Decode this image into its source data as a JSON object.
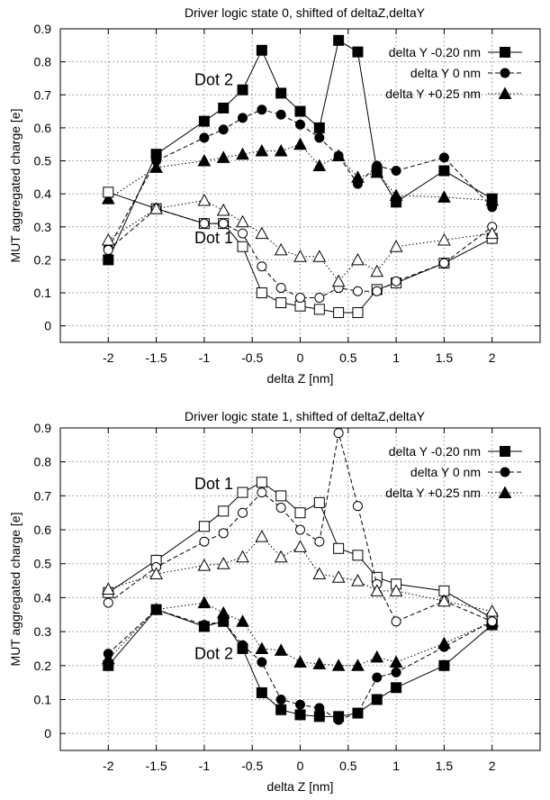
{
  "chart_data": [
    {
      "type": "line",
      "title": "Driver logic state 0, shifted of deltaZ,deltaY",
      "xlabel": "delta Z  [nm]",
      "ylabel": "MUT aggregated charge [e]",
      "xlim": [
        -2.5,
        2.5
      ],
      "ylim": [
        -0.05,
        0.9
      ],
      "xticks": [
        -2,
        -1.5,
        -1,
        -0.5,
        0,
        0.5,
        1,
        1.5,
        2
      ],
      "xtick_labels": [
        "-2",
        "-1.5",
        "-1",
        "-0.5",
        "0",
        "0.5",
        "1",
        "1.5",
        "2"
      ],
      "yticks": [
        0,
        0.1,
        0.2,
        0.3,
        0.4,
        0.5,
        0.6,
        0.7,
        0.8,
        0.9
      ],
      "ytick_labels": [
        "0",
        "0.1",
        "0.2",
        "0.3",
        "0.4",
        "0.5",
        "0.6",
        "0.7",
        "0.8",
        "0.9"
      ],
      "grid": true,
      "legend_position": "top-right",
      "annotations": [
        {
          "text": "Dot 2",
          "x": -0.9,
          "y": 0.73
        },
        {
          "text": "Dot 1",
          "x": -0.9,
          "y": 0.25
        }
      ],
      "x": [
        -2,
        -1.5,
        -1,
        -0.8,
        -0.6,
        -0.4,
        -0.2,
        0,
        0.2,
        0.4,
        0.6,
        0.8,
        1,
        1.5,
        2
      ],
      "series": [
        {
          "name": "delta Y -0.20 nm",
          "group": "Dot 2",
          "marker": "square",
          "filled": true,
          "dash": "solid",
          "values": [
            0.2,
            0.52,
            0.62,
            0.66,
            0.715,
            0.835,
            0.705,
            0.65,
            0.6,
            0.865,
            0.83,
            0.47,
            0.375,
            0.47,
            0.385
          ]
        },
        {
          "name": "delta Y 0 nm",
          "group": "Dot 2",
          "marker": "circle",
          "filled": true,
          "dash": "dash",
          "values": [
            0.235,
            0.5,
            0.57,
            0.595,
            0.63,
            0.655,
            0.64,
            0.61,
            0.57,
            0.515,
            0.43,
            0.485,
            0.47,
            0.51,
            0.36
          ]
        },
        {
          "name": "delta Y +0.25 nm",
          "group": "Dot 2",
          "marker": "triangle",
          "filled": true,
          "dash": "dot",
          "values": [
            0.385,
            0.48,
            0.5,
            0.51,
            0.52,
            0.53,
            0.53,
            0.55,
            0.485,
            0.515,
            0.45,
            0.465,
            0.395,
            0.39,
            0.38
          ]
        },
        {
          "group": "Dot 1",
          "marker": "square",
          "filled": false,
          "dash": "solid",
          "values": [
            0.405,
            0.355,
            0.31,
            0.31,
            0.24,
            0.1,
            0.07,
            0.06,
            0.05,
            0.04,
            0.04,
            0.11,
            0.13,
            0.19,
            0.265
          ]
        },
        {
          "group": "Dot 1",
          "marker": "circle",
          "filled": false,
          "dash": "dash",
          "values": [
            0.23,
            0.355,
            0.31,
            0.31,
            0.28,
            0.18,
            0.115,
            0.085,
            0.085,
            0.115,
            0.105,
            0.105,
            0.135,
            0.19,
            0.3
          ]
        },
        {
          "group": "Dot 1",
          "marker": "triangle",
          "filled": false,
          "dash": "dot",
          "values": [
            0.26,
            0.355,
            0.38,
            0.35,
            0.315,
            0.28,
            0.23,
            0.21,
            0.21,
            0.135,
            0.2,
            0.165,
            0.24,
            0.26,
            0.28
          ]
        }
      ]
    },
    {
      "type": "line",
      "title": "Driver logic state 1, shifted of deltaZ,deltaY",
      "xlabel": "delta Z  [nm]",
      "ylabel": "MUT aggregated charge [e]",
      "xlim": [
        -2.5,
        2.5
      ],
      "ylim": [
        -0.05,
        0.9
      ],
      "xticks": [
        -2,
        -1.5,
        -1,
        -0.5,
        0,
        0.5,
        1,
        1.5,
        2
      ],
      "xtick_labels": [
        "-2",
        "-1.5",
        "-1",
        "-0.5",
        "0",
        "0.5",
        "1",
        "1.5",
        "2"
      ],
      "yticks": [
        0,
        0.1,
        0.2,
        0.3,
        0.4,
        0.5,
        0.6,
        0.7,
        0.8,
        0.9
      ],
      "ytick_labels": [
        "0",
        "0.1",
        "0.2",
        "0.3",
        "0.4",
        "0.5",
        "0.6",
        "0.7",
        "0.8",
        "0.9"
      ],
      "grid": true,
      "legend_position": "top-right",
      "annotations": [
        {
          "text": "Dot 1",
          "x": -0.9,
          "y": 0.72
        },
        {
          "text": "Dot 2",
          "x": -0.9,
          "y": 0.22
        }
      ],
      "x": [
        -2,
        -1.5,
        -1,
        -0.8,
        -0.6,
        -0.4,
        -0.2,
        0,
        0.2,
        0.4,
        0.6,
        0.8,
        1,
        1.5,
        2
      ],
      "series": [
        {
          "name": "delta Y -0.20 nm",
          "group": "Dot 2",
          "marker": "square",
          "filled": true,
          "dash": "solid",
          "values": [
            0.2,
            0.365,
            0.315,
            0.33,
            0.25,
            0.12,
            0.07,
            0.055,
            0.05,
            0.05,
            0.06,
            0.1,
            0.135,
            0.2,
            0.32
          ]
        },
        {
          "name": "delta Y 0 nm",
          "group": "Dot 2",
          "marker": "circle",
          "filled": true,
          "dash": "dash",
          "values": [
            0.235,
            0.365,
            0.32,
            0.33,
            0.26,
            0.21,
            0.1,
            0.085,
            0.075,
            0.04,
            0.06,
            0.165,
            0.18,
            0.255,
            0.33
          ]
        },
        {
          "name": "delta Y +0.25 nm",
          "group": "Dot 2",
          "marker": "triangle",
          "filled": true,
          "dash": "dot",
          "values": [
            0.22,
            0.365,
            0.385,
            0.355,
            0.33,
            0.25,
            0.245,
            0.21,
            0.205,
            0.2,
            0.2,
            0.225,
            0.21,
            0.265,
            0.33
          ]
        },
        {
          "group": "Dot 1",
          "marker": "square",
          "filled": false,
          "dash": "solid",
          "values": [
            0.415,
            0.51,
            0.61,
            0.655,
            0.71,
            0.74,
            0.7,
            0.65,
            0.68,
            0.545,
            0.525,
            0.46,
            0.44,
            0.42,
            0.34
          ]
        },
        {
          "group": "Dot 1",
          "marker": "circle",
          "filled": false,
          "dash": "dash",
          "values": [
            0.385,
            0.49,
            0.565,
            0.59,
            0.65,
            0.71,
            0.665,
            0.6,
            0.565,
            0.885,
            0.67,
            0.44,
            0.33,
            0.39,
            0.33
          ]
        },
        {
          "group": "Dot 1",
          "marker": "triangle",
          "filled": false,
          "dash": "dot",
          "values": [
            0.425,
            0.47,
            0.495,
            0.5,
            0.52,
            0.58,
            0.52,
            0.55,
            0.47,
            0.46,
            0.45,
            0.42,
            0.42,
            0.39,
            0.36
          ]
        }
      ]
    }
  ]
}
